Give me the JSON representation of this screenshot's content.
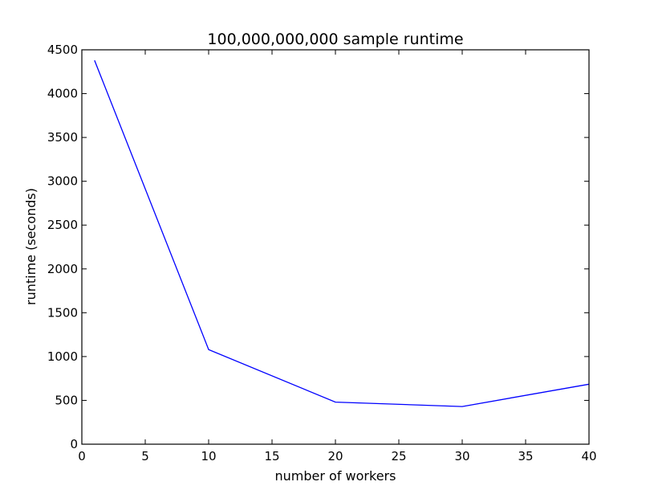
{
  "chart_data": {
    "type": "line",
    "title": "100,000,000,000 sample runtime",
    "xlabel": "number of workers",
    "ylabel": "runtime (seconds)",
    "xlim": [
      0,
      40
    ],
    "ylim": [
      0,
      4500
    ],
    "xticks": [
      0,
      5,
      10,
      15,
      20,
      25,
      30,
      35,
      40
    ],
    "yticks": [
      0,
      500,
      1000,
      1500,
      2000,
      2500,
      3000,
      3500,
      4000,
      4500
    ],
    "grid": false,
    "series": [
      {
        "color": "#0000ff",
        "x": [
          1,
          10,
          20,
          30,
          40
        ],
        "y": [
          4380,
          1080,
          480,
          430,
          685
        ]
      }
    ]
  }
}
